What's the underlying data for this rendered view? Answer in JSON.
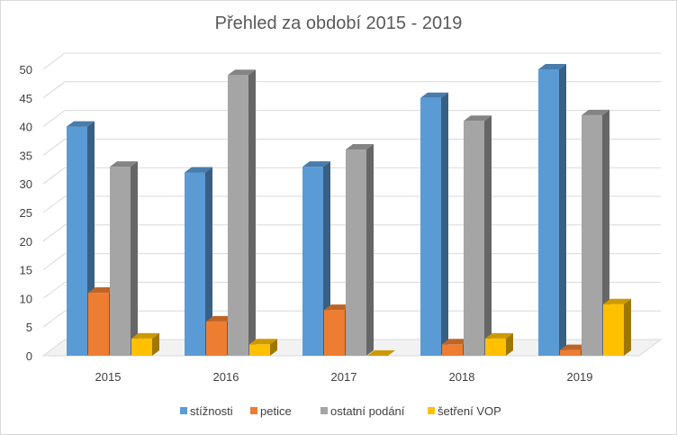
{
  "chart_data": {
    "type": "bar",
    "title": "Přehled za období 2015 - 2019",
    "categories": [
      "2015",
      "2016",
      "2017",
      "2018",
      "2019"
    ],
    "series": [
      {
        "name": "stížnosti",
        "values": [
          40,
          32,
          33,
          45,
          50
        ],
        "color": "#5B9BD5"
      },
      {
        "name": "petice",
        "values": [
          11,
          6,
          8,
          2,
          1
        ],
        "color": "#ED7D31"
      },
      {
        "name": "ostatní podání",
        "values": [
          33,
          49,
          36,
          41,
          42
        ],
        "color": "#A5A5A5"
      },
      {
        "name": "šetření VOP",
        "values": [
          3,
          2,
          0,
          3,
          9
        ],
        "color": "#FFC000"
      }
    ],
    "ylim": [
      0,
      50
    ],
    "yticks": [
      "0",
      "5",
      "10",
      "15",
      "20",
      "25",
      "30",
      "35",
      "40",
      "45",
      "50"
    ],
    "grid": true,
    "legend_position": "bottom",
    "style": "3d-clustered-column"
  }
}
